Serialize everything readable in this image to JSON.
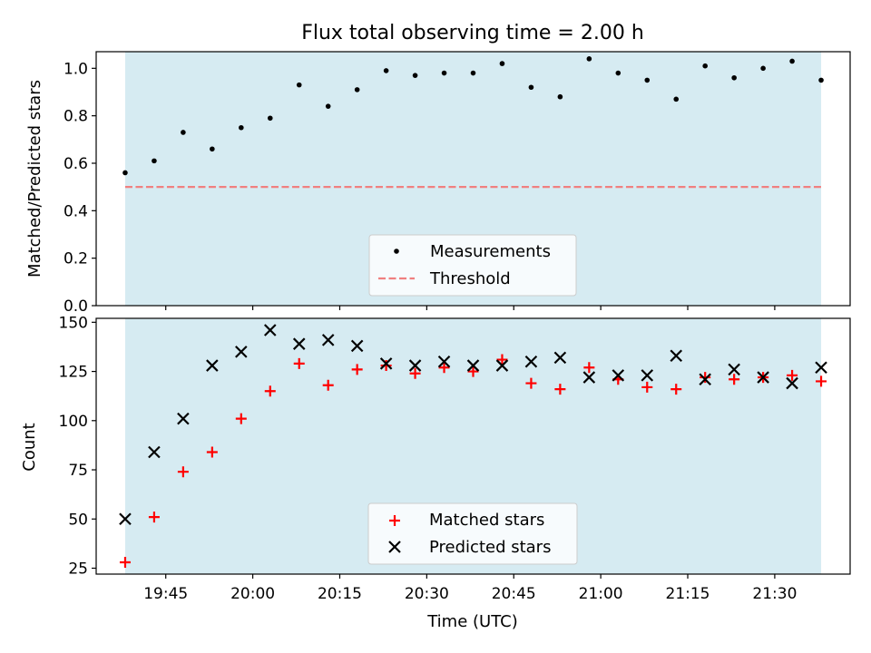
{
  "figure": {
    "title": "Flux total observing time = 2.00 h",
    "xlabel": "Time (UTC)",
    "x_ticks": [
      "19:45",
      "20:00",
      "20:15",
      "20:30",
      "20:45",
      "21:00",
      "21:15",
      "21:30"
    ]
  },
  "colors": {
    "shade": "#add8e6",
    "measurements": "#000000",
    "threshold": "#f08080",
    "matched": "#ff0000",
    "predicted": "#000000"
  },
  "chart_data": [
    {
      "type": "scatter",
      "ylabel": "Matched/Predicted stars",
      "ylim": [
        0,
        1.07
      ],
      "y_ticks": [
        "0.0",
        "0.2",
        "0.4",
        "0.6",
        "0.8",
        "1.0"
      ],
      "xlim": [
        "19:33",
        "21:43"
      ],
      "shaded_range": [
        "19:38",
        "21:38"
      ],
      "legend": {
        "position": "lower center",
        "items": [
          "Measurements",
          "Threshold"
        ]
      },
      "threshold": 0.5,
      "series": [
        {
          "name": "Measurements",
          "x": [
            "19:38",
            "19:43",
            "19:48",
            "19:53",
            "19:58",
            "20:03",
            "20:08",
            "20:13",
            "20:18",
            "20:23",
            "20:28",
            "20:33",
            "20:38",
            "20:43",
            "20:48",
            "20:53",
            "20:58",
            "21:03",
            "21:08",
            "21:13",
            "21:18",
            "21:23",
            "21:28",
            "21:33",
            "21:38"
          ],
          "y": [
            0.56,
            0.61,
            0.73,
            0.66,
            0.75,
            0.79,
            0.93,
            0.84,
            0.91,
            0.99,
            0.97,
            0.98,
            0.98,
            1.02,
            0.92,
            0.88,
            1.04,
            0.98,
            0.95,
            0.87,
            1.01,
            0.96,
            1.0,
            1.03,
            0.95
          ]
        }
      ]
    },
    {
      "type": "scatter",
      "ylabel": "Count",
      "ylim": [
        22,
        152
      ],
      "y_ticks": [
        "25",
        "50",
        "75",
        "100",
        "125",
        "150"
      ],
      "xlim": [
        "19:33",
        "21:43"
      ],
      "shaded_range": [
        "19:38",
        "21:38"
      ],
      "legend": {
        "position": "lower center",
        "items": [
          "Matched stars",
          "Predicted stars"
        ]
      },
      "series": [
        {
          "name": "Matched stars",
          "marker": "+",
          "x": [
            "19:38",
            "19:43",
            "19:48",
            "19:53",
            "19:58",
            "20:03",
            "20:08",
            "20:13",
            "20:18",
            "20:23",
            "20:28",
            "20:33",
            "20:38",
            "20:43",
            "20:48",
            "20:53",
            "20:58",
            "21:03",
            "21:08",
            "21:13",
            "21:18",
            "21:23",
            "21:28",
            "21:33",
            "21:38"
          ],
          "y": [
            28,
            51,
            74,
            84,
            101,
            115,
            129,
            118,
            126,
            128,
            124,
            127,
            125,
            131,
            119,
            116,
            127,
            121,
            117,
            116,
            122,
            121,
            122,
            123,
            120
          ]
        },
        {
          "name": "Predicted stars",
          "marker": "x",
          "x": [
            "19:38",
            "19:43",
            "19:48",
            "19:53",
            "19:58",
            "20:03",
            "20:08",
            "20:13",
            "20:18",
            "20:23",
            "20:28",
            "20:33",
            "20:38",
            "20:43",
            "20:48",
            "20:53",
            "20:58",
            "21:03",
            "21:08",
            "21:13",
            "21:18",
            "21:23",
            "21:28",
            "21:33",
            "21:38"
          ],
          "y": [
            50,
            84,
            101,
            128,
            135,
            146,
            139,
            141,
            138,
            129,
            128,
            130,
            128,
            128,
            130,
            132,
            122,
            123,
            123,
            133,
            121,
            126,
            122,
            119,
            127
          ]
        }
      ]
    }
  ]
}
